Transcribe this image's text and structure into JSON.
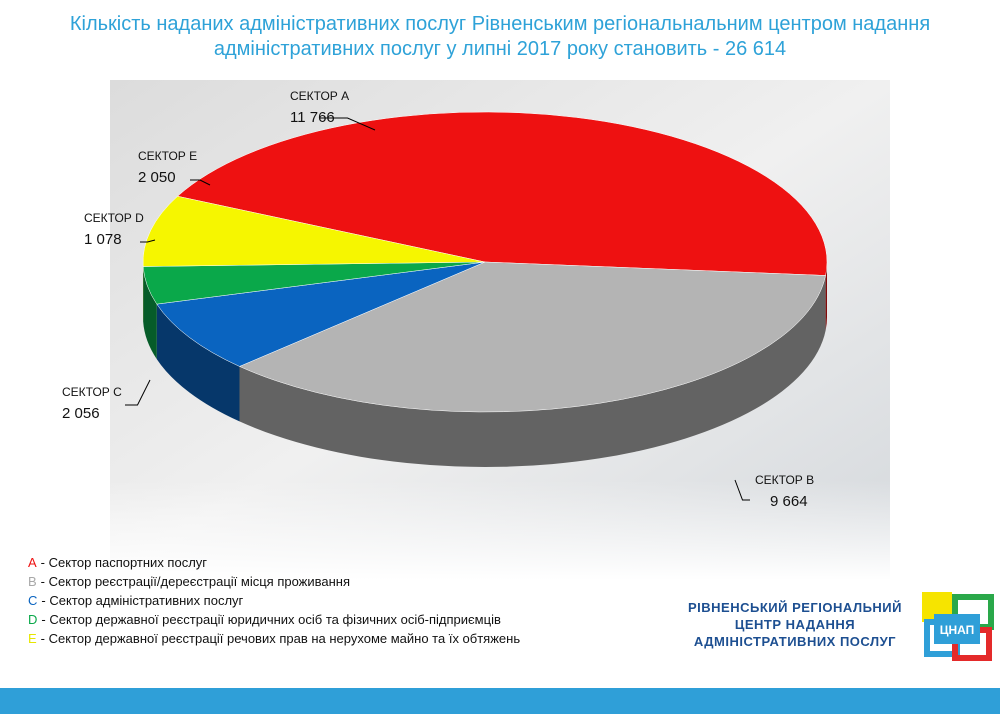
{
  "chart_data": {
    "type": "pie",
    "title": "Кількість наданих адміністративних послуг Рівненським регіональнальним центром надання адміністративних послуг у липні 2017 року становить - 26 614",
    "categories": [
      "СЕКТОР A",
      "СЕКТОР B",
      "СЕКТОР C",
      "СЕКТОР D",
      "СЕКТОР E"
    ],
    "values": [
      11766,
      9664,
      2056,
      1078,
      2050
    ],
    "value_labels": [
      "11 766",
      "9 664",
      "2 056",
      "1 078",
      "2 050"
    ],
    "colors": [
      "#ee1111",
      "#b4b4b4",
      "#0a64c0",
      "#0aa84a",
      "#f6f600"
    ],
    "legend": [
      {
        "letter": "A",
        "text": "- Сектор паспортних послуг"
      },
      {
        "letter": "B",
        "text": "- Сектор реєстрації/дереєстрації місця проживання"
      },
      {
        "letter": "C",
        "text": "- Сектор адміністративних послуг"
      },
      {
        "letter": "D",
        "text": "- Сектор державної реєстрації юридичних осіб та фізичних осіб-підприємців"
      },
      {
        "letter": "E",
        "text": "- Сектор державної реєстрації речових прав на нерухоме майно та їх обтяжень"
      }
    ]
  },
  "logo": {
    "lines": [
      "РІВНЕНСЬКИЙ РЕГІОНАЛЬНИЙ",
      "ЦЕНТР НАДАННЯ",
      "АДМІНІСТРАТИВНИХ ПОСЛУГ"
    ],
    "icon_text": "ЦНАП"
  }
}
